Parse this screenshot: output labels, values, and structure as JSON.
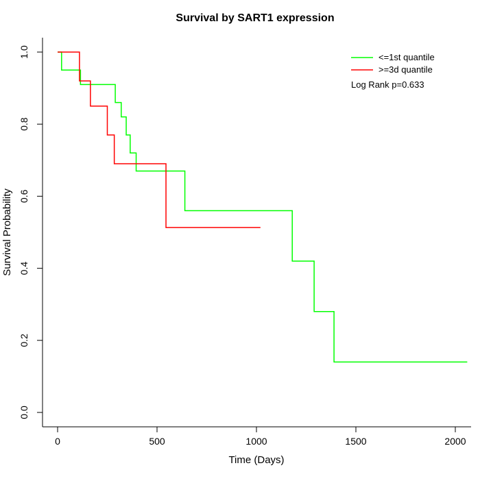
{
  "chart_data": {
    "type": "line",
    "subtype": "kaplan-meier-step",
    "title": "Survival by SART1 expression",
    "xlabel": "Time (Days)",
    "ylabel": "Survival Probability",
    "xlim": [
      0,
      2100
    ],
    "ylim": [
      0.0,
      1.0
    ],
    "x_ticks": [
      0,
      500,
      1000,
      1500,
      2000
    ],
    "y_ticks": [
      0.0,
      0.2,
      0.4,
      0.6,
      0.8,
      1.0
    ],
    "grid": false,
    "legend_position": "top-right",
    "annotation": "Log Rank p=0.633",
    "series": [
      {
        "name": "<=1st quantile",
        "color": "#00FF00",
        "step": "post",
        "points": [
          [
            0,
            1.0
          ],
          [
            20,
            0.95
          ],
          [
            115,
            0.91
          ],
          [
            290,
            0.86
          ],
          [
            320,
            0.82
          ],
          [
            345,
            0.77
          ],
          [
            365,
            0.72
          ],
          [
            395,
            0.67
          ],
          [
            640,
            0.56
          ],
          [
            1180,
            0.42
          ],
          [
            1290,
            0.28
          ],
          [
            1390,
            0.14
          ],
          [
            2060,
            0.14
          ]
        ]
      },
      {
        "name": ">=3d quantile",
        "color": "#FF0000",
        "step": "post",
        "points": [
          [
            0,
            1.0
          ],
          [
            110,
            0.92
          ],
          [
            165,
            0.85
          ],
          [
            250,
            0.77
          ],
          [
            285,
            0.69
          ],
          [
            545,
            0.513
          ],
          [
            1020,
            0.513
          ]
        ]
      }
    ]
  }
}
